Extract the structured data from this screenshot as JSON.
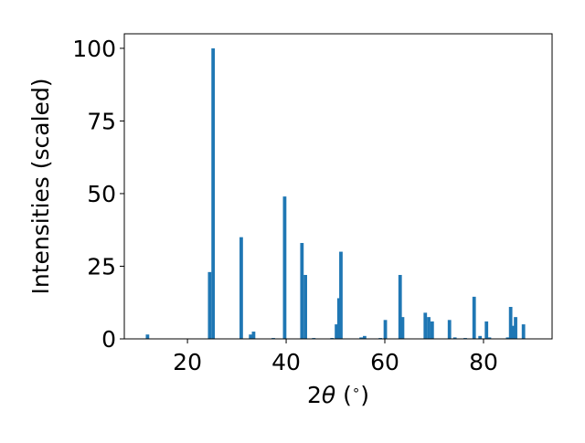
{
  "chart_data": {
    "type": "bar",
    "xlabel_prefix": "2",
    "xlabel_theta": "θ",
    "xlabel_suffix": " (",
    "xlabel_degree": "∘",
    "xlabel_close": ")",
    "ylabel": "Intensities (scaled)",
    "xlim": [
      7.2,
      93.9
    ],
    "ylim": [
      0,
      105
    ],
    "xticks": [
      20,
      40,
      60,
      80
    ],
    "yticks": [
      0,
      25,
      50,
      75,
      100
    ],
    "bar_width_deg": 0.7,
    "bar_color": "#1f77b4",
    "grid": false,
    "peaks": [
      {
        "x": 11.9,
        "y": 1.5
      },
      {
        "x": 24.5,
        "y": 23
      },
      {
        "x": 25.2,
        "y": 100
      },
      {
        "x": 30.9,
        "y": 35
      },
      {
        "x": 32.8,
        "y": 1.5
      },
      {
        "x": 33.4,
        "y": 2.5
      },
      {
        "x": 37.4,
        "y": 0.3
      },
      {
        "x": 39.7,
        "y": 49
      },
      {
        "x": 43.2,
        "y": 33
      },
      {
        "x": 43.9,
        "y": 22
      },
      {
        "x": 45.6,
        "y": 0.3
      },
      {
        "x": 49.3,
        "y": 0.3
      },
      {
        "x": 50.2,
        "y": 5
      },
      {
        "x": 50.7,
        "y": 14
      },
      {
        "x": 51.1,
        "y": 30
      },
      {
        "x": 55.2,
        "y": 0.5
      },
      {
        "x": 55.9,
        "y": 1
      },
      {
        "x": 59.1,
        "y": 0.3
      },
      {
        "x": 60.1,
        "y": 6.5
      },
      {
        "x": 63.1,
        "y": 22
      },
      {
        "x": 63.6,
        "y": 7.5
      },
      {
        "x": 68.2,
        "y": 9
      },
      {
        "x": 68.9,
        "y": 7.5
      },
      {
        "x": 69.6,
        "y": 6
      },
      {
        "x": 73.1,
        "y": 6.5
      },
      {
        "x": 74.2,
        "y": 0.5
      },
      {
        "x": 76.3,
        "y": 0.3
      },
      {
        "x": 78.1,
        "y": 14.5
      },
      {
        "x": 79.3,
        "y": 1
      },
      {
        "x": 80.6,
        "y": 6
      },
      {
        "x": 81.2,
        "y": 0.5
      },
      {
        "x": 84.9,
        "y": 0.5
      },
      {
        "x": 85.5,
        "y": 11
      },
      {
        "x": 86.0,
        "y": 4.5
      },
      {
        "x": 86.5,
        "y": 7.5
      },
      {
        "x": 88.1,
        "y": 5
      }
    ]
  }
}
